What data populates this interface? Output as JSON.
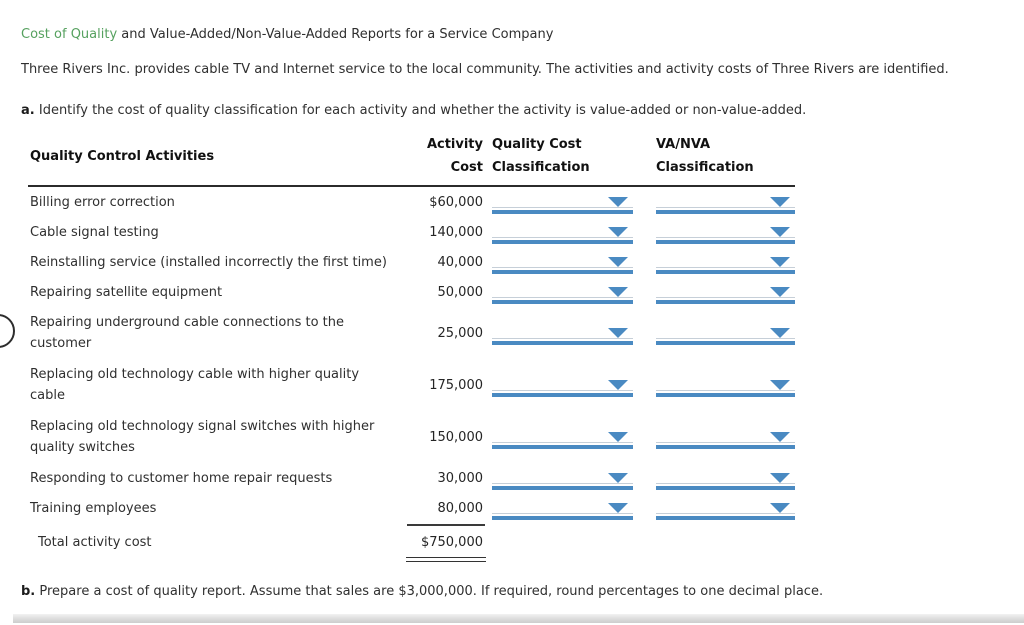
{
  "title": {
    "link_text": "Cost of Quality",
    "rest_text": " and Value-Added/Non-Value-Added Reports for a Service Company"
  },
  "intro": "Three Rivers Inc. provides cable TV and Internet service to the local community. The activities and activity costs of Three Rivers are identified.",
  "section_a": {
    "label": "a.",
    "text": "Identify the cost of quality classification for each activity and whether the activity is value-added or non-value-added."
  },
  "section_b": {
    "label": "b.",
    "text": "Prepare a cost of quality report. Assume that sales are $3,000,000. If required, round percentages to one decimal place."
  },
  "table": {
    "headers": {
      "activities": "Quality Control Activities",
      "cost_line1": "Activity",
      "cost_line2": "Cost",
      "qcc_line1": "Quality Cost",
      "qcc_line2": "Classification",
      "va_line1": "VA/NVA",
      "va_line2": "Classification"
    },
    "rows": [
      {
        "activity": "Billing error correction",
        "cost": "$60,000"
      },
      {
        "activity": "Cable signal testing",
        "cost": "140,000"
      },
      {
        "activity": "Reinstalling service (installed incorrectly the first time)",
        "cost": "40,000"
      },
      {
        "activity": "Repairing satellite equipment",
        "cost": "50,000"
      },
      {
        "activity": "Repairing underground cable connections to the\ncustomer",
        "cost": "25,000"
      },
      {
        "activity": "Replacing old technology cable with higher quality\ncable",
        "cost": "175,000"
      },
      {
        "activity": "Replacing old technology signal switches with higher\nquality switches",
        "cost": "150,000"
      },
      {
        "activity": "Responding to customer home repair requests",
        "cost": "30,000"
      },
      {
        "activity": "Training employees",
        "cost": "80,000"
      }
    ],
    "dropdowns": {
      "quality_cost_value": "",
      "va_nva_value": ""
    },
    "total": {
      "label": "Total activity cost",
      "value": "$750,000"
    }
  },
  "icons": {
    "chevron_down": "▼"
  },
  "colors": {
    "accent_blue": "#4a8ac2",
    "link_green": "#56a15f"
  }
}
